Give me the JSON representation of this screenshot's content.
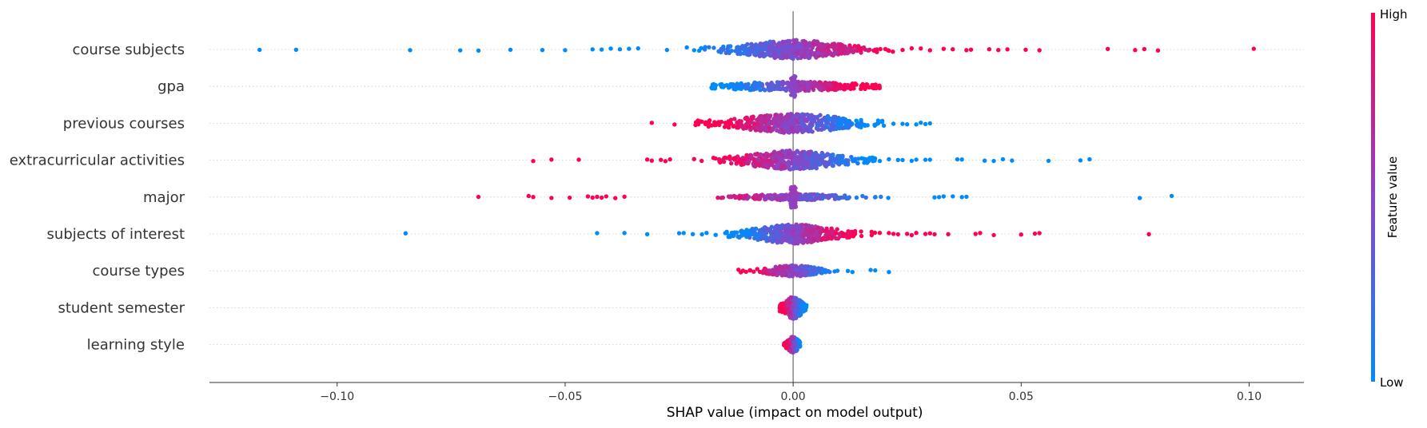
{
  "chart_data": {
    "type": "scatter",
    "subtype": "shap-beeswarm",
    "xlabel": "SHAP value (impact on model output)",
    "xlim": [
      -0.128,
      0.112
    ],
    "xticks": [
      -0.1,
      -0.05,
      0.0,
      0.05,
      0.1
    ],
    "xtick_labels": [
      "−0.10",
      "−0.05",
      "0.00",
      "0.05",
      "0.10"
    ],
    "colorbar": {
      "label": "Feature value",
      "high_label": "High",
      "low_label": "Low",
      "high_color": "#ff0052",
      "low_color": "#008bfb"
    },
    "features": [
      {
        "name": "course subjects",
        "core_low": -0.03,
        "core_high": 0.022,
        "core_sigma": 0.0075,
        "core_count": 520,
        "spread": 12,
        "corr": 1,
        "outliers": [
          [
            -0.117,
            0
          ],
          [
            -0.109,
            0
          ],
          [
            -0.084,
            0
          ],
          [
            -0.073,
            0
          ],
          [
            -0.069,
            0
          ],
          [
            -0.062,
            0
          ],
          [
            -0.055,
            0
          ],
          [
            -0.05,
            0
          ],
          [
            -0.044,
            0
          ],
          [
            -0.042,
            0
          ],
          [
            -0.04,
            0
          ],
          [
            -0.038,
            0
          ],
          [
            -0.036,
            0
          ],
          [
            -0.034,
            0
          ],
          [
            0.024,
            1
          ],
          [
            0.026,
            1
          ],
          [
            0.028,
            1
          ],
          [
            0.03,
            1
          ],
          [
            0.033,
            1
          ],
          [
            0.035,
            1
          ],
          [
            0.038,
            1
          ],
          [
            0.039,
            1
          ],
          [
            0.043,
            1
          ],
          [
            0.045,
            1
          ],
          [
            0.047,
            1
          ],
          [
            0.051,
            1
          ],
          [
            0.054,
            1
          ],
          [
            0.069,
            1
          ],
          [
            0.075,
            1
          ],
          [
            0.077,
            1
          ],
          [
            0.08,
            1
          ],
          [
            0.101,
            1
          ]
        ]
      },
      {
        "name": "gpa",
        "core_low": -0.018,
        "core_high": 0.019,
        "core_sigma": 0.011,
        "core_count": 300,
        "spread": 6,
        "corr": 1,
        "spike_count": 40,
        "spike_value": 0.5,
        "outliers": []
      },
      {
        "name": "previous courses",
        "core_low": -0.022,
        "core_high": 0.02,
        "core_sigma": 0.009,
        "core_count": 480,
        "spread": 12,
        "corr": -1,
        "outliers": [
          [
            -0.031,
            1
          ],
          [
            -0.026,
            1
          ],
          [
            0.022,
            0
          ],
          [
            0.024,
            0
          ],
          [
            0.025,
            0
          ],
          [
            0.027,
            0
          ],
          [
            0.028,
            0
          ],
          [
            0.029,
            0
          ],
          [
            0.03,
            0
          ]
        ]
      },
      {
        "name": "extracurricular activities",
        "core_low": -0.024,
        "core_high": 0.018,
        "core_sigma": 0.0075,
        "core_count": 500,
        "spread": 12,
        "corr": -1,
        "outliers": [
          [
            -0.057,
            1
          ],
          [
            -0.053,
            1
          ],
          [
            -0.047,
            1
          ],
          [
            -0.032,
            1
          ],
          [
            -0.031,
            1
          ],
          [
            -0.029,
            1
          ],
          [
            -0.028,
            1
          ],
          [
            -0.027,
            1
          ],
          [
            0.019,
            0
          ],
          [
            0.021,
            0
          ],
          [
            0.023,
            0
          ],
          [
            0.024,
            0
          ],
          [
            0.026,
            0
          ],
          [
            0.027,
            0
          ],
          [
            0.029,
            0
          ],
          [
            0.03,
            0
          ],
          [
            0.036,
            0
          ],
          [
            0.037,
            0
          ],
          [
            0.042,
            0
          ],
          [
            0.044,
            0
          ],
          [
            0.046,
            0
          ],
          [
            0.048,
            0
          ],
          [
            0.056,
            0
          ],
          [
            0.063,
            0
          ],
          [
            0.065,
            0
          ]
        ]
      },
      {
        "name": "major",
        "core_low": -0.032,
        "core_high": 0.03,
        "core_sigma": 0.0075,
        "core_count": 220,
        "spread": 4,
        "corr": -1,
        "spike_count": 80,
        "spike_value": 0.55,
        "outliers": [
          [
            -0.069,
            1
          ],
          [
            -0.058,
            1
          ],
          [
            -0.057,
            1
          ],
          [
            -0.053,
            1
          ],
          [
            -0.049,
            1
          ],
          [
            -0.045,
            1
          ],
          [
            -0.044,
            1
          ],
          [
            -0.043,
            1
          ],
          [
            -0.042,
            1
          ],
          [
            -0.041,
            1
          ],
          [
            -0.039,
            1
          ],
          [
            -0.037,
            1
          ],
          [
            0.031,
            0
          ],
          [
            0.032,
            0
          ],
          [
            0.033,
            0
          ],
          [
            0.035,
            0
          ],
          [
            0.037,
            0
          ],
          [
            0.038,
            0
          ],
          [
            0.076,
            0
          ],
          [
            0.083,
            0
          ]
        ]
      },
      {
        "name": "subjects of interest",
        "core_low": -0.016,
        "core_high": 0.018,
        "core_sigma": 0.0065,
        "core_count": 470,
        "spread": 12,
        "corr": 1,
        "outliers": [
          [
            -0.085,
            0
          ],
          [
            -0.043,
            0
          ],
          [
            -0.037,
            0
          ],
          [
            -0.032,
            0
          ],
          [
            -0.025,
            0
          ],
          [
            -0.024,
            0
          ],
          [
            -0.022,
            0
          ],
          [
            -0.02,
            0
          ],
          [
            -0.019,
            0
          ],
          [
            -0.017,
            0
          ],
          [
            0.019,
            1
          ],
          [
            0.021,
            1
          ],
          [
            0.022,
            1
          ],
          [
            0.023,
            1
          ],
          [
            0.025,
            1
          ],
          [
            0.026,
            1
          ],
          [
            0.027,
            1
          ],
          [
            0.029,
            1
          ],
          [
            0.03,
            1
          ],
          [
            0.031,
            1
          ],
          [
            0.034,
            1
          ],
          [
            0.04,
            1
          ],
          [
            0.041,
            1
          ],
          [
            0.044,
            1
          ],
          [
            0.05,
            1
          ],
          [
            0.053,
            1
          ],
          [
            0.054,
            1
          ],
          [
            0.078,
            1
          ]
        ]
      },
      {
        "name": "course types",
        "core_low": -0.012,
        "core_high": 0.014,
        "core_sigma": 0.004,
        "core_count": 240,
        "spread": 7,
        "corr": -1,
        "outliers": [
          [
            -0.012,
            1
          ],
          [
            -0.011,
            1
          ],
          [
            0.012,
            0
          ],
          [
            0.013,
            0
          ],
          [
            0.017,
            0
          ],
          [
            0.018,
            0
          ],
          [
            0.021,
            0
          ]
        ]
      },
      {
        "name": "student semester",
        "core_low": -0.003,
        "core_high": 0.003,
        "core_sigma": 0.0014,
        "core_count": 240,
        "spread": 14,
        "corr": -1,
        "outliers": []
      },
      {
        "name": "learning style",
        "core_low": -0.002,
        "core_high": 0.0015,
        "core_sigma": 0.0009,
        "core_count": 140,
        "spread": 10,
        "corr": -1,
        "outliers": []
      }
    ]
  }
}
